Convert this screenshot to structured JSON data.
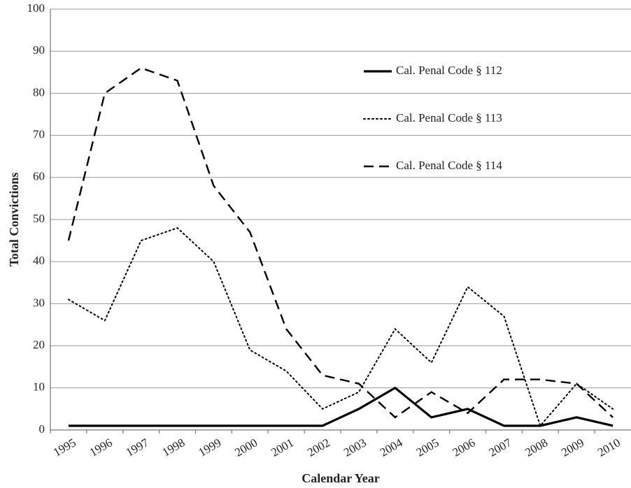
{
  "chart_data": {
    "type": "line",
    "x_label": "Calendar Year",
    "y_label": "Total Convictions",
    "categories": [
      "1995",
      "1996",
      "1997",
      "1998",
      "1999",
      "2000",
      "2001",
      "2002",
      "2003",
      "2004",
      "2005",
      "2006",
      "2007",
      "2008",
      "2009",
      "2010"
    ],
    "series": [
      {
        "name": "Cal. Penal Code § 112",
        "color": "#000000",
        "dash": "solid",
        "values": [
          1,
          1,
          1,
          1,
          1,
          1,
          1,
          1,
          5,
          10,
          3,
          5,
          1,
          1,
          3,
          1
        ]
      },
      {
        "name": "Cal. Penal Code § 113",
        "color": "#000000",
        "dash": "dotted",
        "values": [
          31,
          26,
          45,
          48,
          40,
          19,
          14,
          5,
          9,
          24,
          16,
          34,
          27,
          1,
          11,
          5
        ]
      },
      {
        "name": "Cal. Penal Code § 114",
        "color": "#000000",
        "dash": "dashed",
        "values": [
          45,
          80,
          86,
          83,
          58,
          47,
          24,
          13,
          11,
          3,
          9,
          4,
          12,
          12,
          11,
          3
        ]
      }
    ],
    "ylim": [
      0,
      100
    ],
    "yticks": [
      0,
      10,
      20,
      30,
      40,
      50,
      60,
      70,
      80,
      90,
      100
    ],
    "grid": true,
    "legend": "upper right"
  }
}
